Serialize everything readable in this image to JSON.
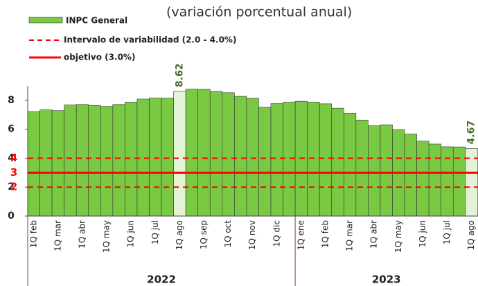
{
  "chart_data": {
    "type": "bar",
    "title": "(variación porcentual anual)",
    "categories": [
      "1Q feb",
      null,
      "1Q mar",
      null,
      "1Q abr",
      null,
      "1Q may",
      null,
      "1Q jun",
      null,
      "1Q jul",
      null,
      "1Q ago",
      null,
      "1Q sep",
      null,
      "1Q oct",
      null,
      "1Q nov",
      null,
      "1Q dic",
      null,
      "1Q ene",
      null,
      "1Q feb",
      null,
      "1Q mar",
      null,
      "1Q abr",
      null,
      "1Q may",
      null,
      "1Q jun",
      null,
      "1Q jul",
      null,
      "1Q ago"
    ],
    "groups": [
      {
        "label": "2022",
        "count": 22
      },
      {
        "label": "2023",
        "count": 15
      }
    ],
    "series": [
      {
        "name": "INPC General",
        "color": "#7ac943",
        "highlight_color": "#e4f2d6",
        "values": [
          7.22,
          7.34,
          7.29,
          7.68,
          7.72,
          7.65,
          7.58,
          7.72,
          7.88,
          8.09,
          8.16,
          8.15,
          8.62,
          8.77,
          8.76,
          8.62,
          8.53,
          8.28,
          8.14,
          7.52,
          7.77,
          7.88,
          7.94,
          7.88,
          7.76,
          7.46,
          7.12,
          6.64,
          6.24,
          6.31,
          5.98,
          5.67,
          5.18,
          4.98,
          4.79,
          4.78,
          4.67
        ],
        "labeled": [
          12,
          36
        ],
        "highlighted": [
          12,
          36
        ]
      }
    ],
    "band": {
      "name": "Intervalo de variabilidad (2.0 - 4.0%)",
      "lower": 2,
      "upper": 4,
      "color": "#ff0000"
    },
    "target": {
      "name": "objetivo (3.0%)",
      "value": 3,
      "color": "#ff0000"
    },
    "ylim": [
      0,
      9
    ],
    "yticks": [
      0,
      2,
      4,
      6,
      8
    ]
  }
}
